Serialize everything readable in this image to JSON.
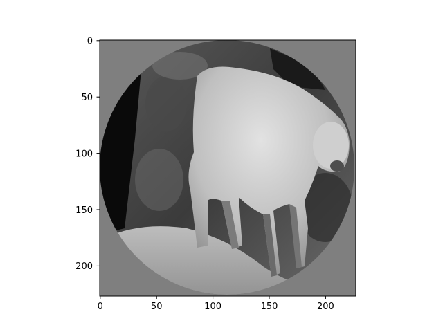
{
  "figure": {
    "image_description_hidden": "",
    "axes": {
      "x_ticks": [
        "0",
        "50",
        "100",
        "150",
        "200"
      ],
      "y_ticks": [
        "0",
        "50",
        "100",
        "150",
        "200"
      ],
      "xlim": [
        -0.5,
        227.5
      ],
      "ylim": [
        227.5,
        -0.5
      ]
    },
    "colors": {
      "background": "#ffffff",
      "masked_area": "#7f7f7f",
      "axes": "#000000"
    }
  }
}
